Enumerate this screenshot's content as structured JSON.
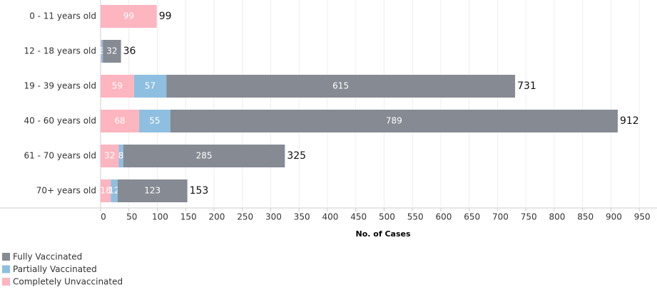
{
  "chart_data": {
    "type": "stacked-bar-horizontal",
    "categories": [
      "0 - 11 years old",
      "12 - 18 years old",
      "19 - 39 years old",
      "40 - 60 years old",
      "61 - 70 years old",
      "70+ years old"
    ],
    "series": [
      {
        "name": "Fully Vaccinated",
        "color": "#858a93",
        "values": [
          null,
          32,
          615,
          789,
          285,
          123
        ]
      },
      {
        "name": "Partially Vaccinated",
        "color": "#8fbfe0",
        "values": [
          null,
          3,
          57,
          55,
          8,
          12
        ]
      },
      {
        "name": "Completely Unvaccinated",
        "color": "#fdb5bf",
        "values": [
          99,
          1,
          59,
          68,
          32,
          18
        ]
      }
    ],
    "totals": [
      99,
      36,
      731,
      912,
      325,
      153
    ],
    "x_label": "No. of Cases",
    "xlim": [
      0,
      980
    ],
    "xticks": [
      0,
      50,
      100,
      150,
      200,
      250,
      300,
      350,
      400,
      450,
      500,
      550,
      600,
      650,
      700,
      750,
      800,
      850,
      900,
      950
    ],
    "grid": true
  }
}
